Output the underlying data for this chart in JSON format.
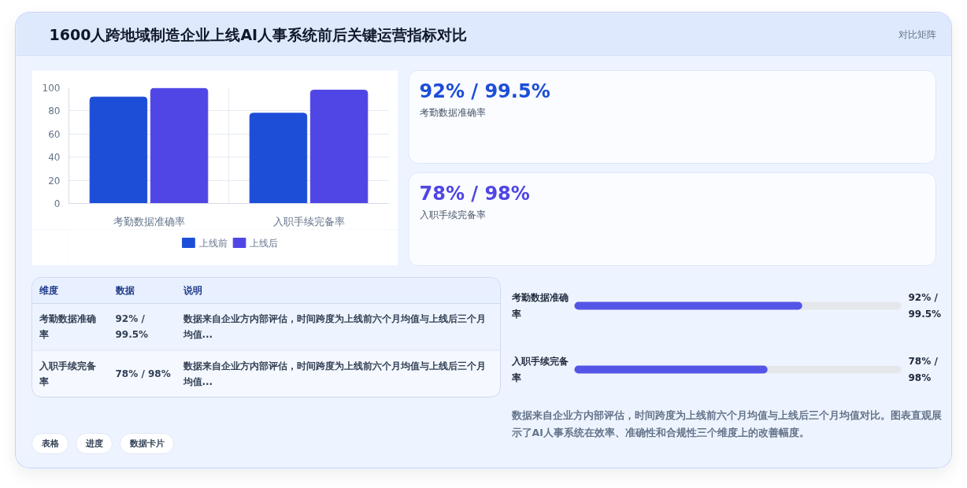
{
  "chart_data": [
    {
      "type": "bar",
      "title": "1600人跨地域制造企业上线AI人事系统前后关键运营指标对比",
      "annotations": [
        "对比矩阵"
      ],
      "categories": [
        "考勤数据准确率",
        "入职手续完备率"
      ],
      "series": [
        {
          "name": "上线前",
          "color": "#1d4ed8",
          "values": [
            92,
            78
          ]
        },
        {
          "name": "上线后",
          "color": "#4f46e5",
          "values": [
            99.5,
            98
          ]
        }
      ],
      "ylim": [
        0,
        100
      ],
      "yticks": [
        0,
        20,
        40,
        60,
        80,
        100
      ],
      "grid": true,
      "legend": "bottom"
    },
    {
      "type": "other",
      "annotations": [
        "92% / 99.5%",
        "考勤数据准确率",
        "78% / 98%",
        "入职手续完备率"
      ],
      "colors": [
        "#1d4ed8",
        "#4f46e5"
      ]
    },
    {
      "type": "other",
      "categories": [
        "维度",
        "数据",
        "说明"
      ],
      "y_categories": [
        "考勤数据准确率",
        "入职手续完备率"
      ],
      "cell_labels": [
        [
          "92% / 99.5%",
          "数据来自企业方内部评估，时间跨度为上线前六个月均值与上线后三个月均值..."
        ],
        [
          "78% / 98%",
          "数据来自企业方内部评估，时间跨度为上线前六个月均值与上线后三个月均值..."
        ]
      ]
    },
    {
      "type": "bar",
      "orientation": "horizontal",
      "categories": [
        "考勤数据准确率",
        "入职手续完备率"
      ],
      "series": [
        {
          "color": "#5455e7",
          "values": [
            92,
            78
          ],
          "value_labels": [
            "92% / 99.5%",
            "78% / 98%"
          ]
        }
      ],
      "xlim": [
        0,
        132
      ],
      "annotations": [
        "数据来自企业方内部评估，时间跨度为上线前六个月均值与上线后三个月均值对比。图表直观展示了AI人事系统在效率、准确性和合规性三个维度上的改善幅度。"
      ]
    },
    {
      "type": "other",
      "annotations": [
        "表格",
        "进度",
        "数据卡片"
      ]
    }
  ]
}
